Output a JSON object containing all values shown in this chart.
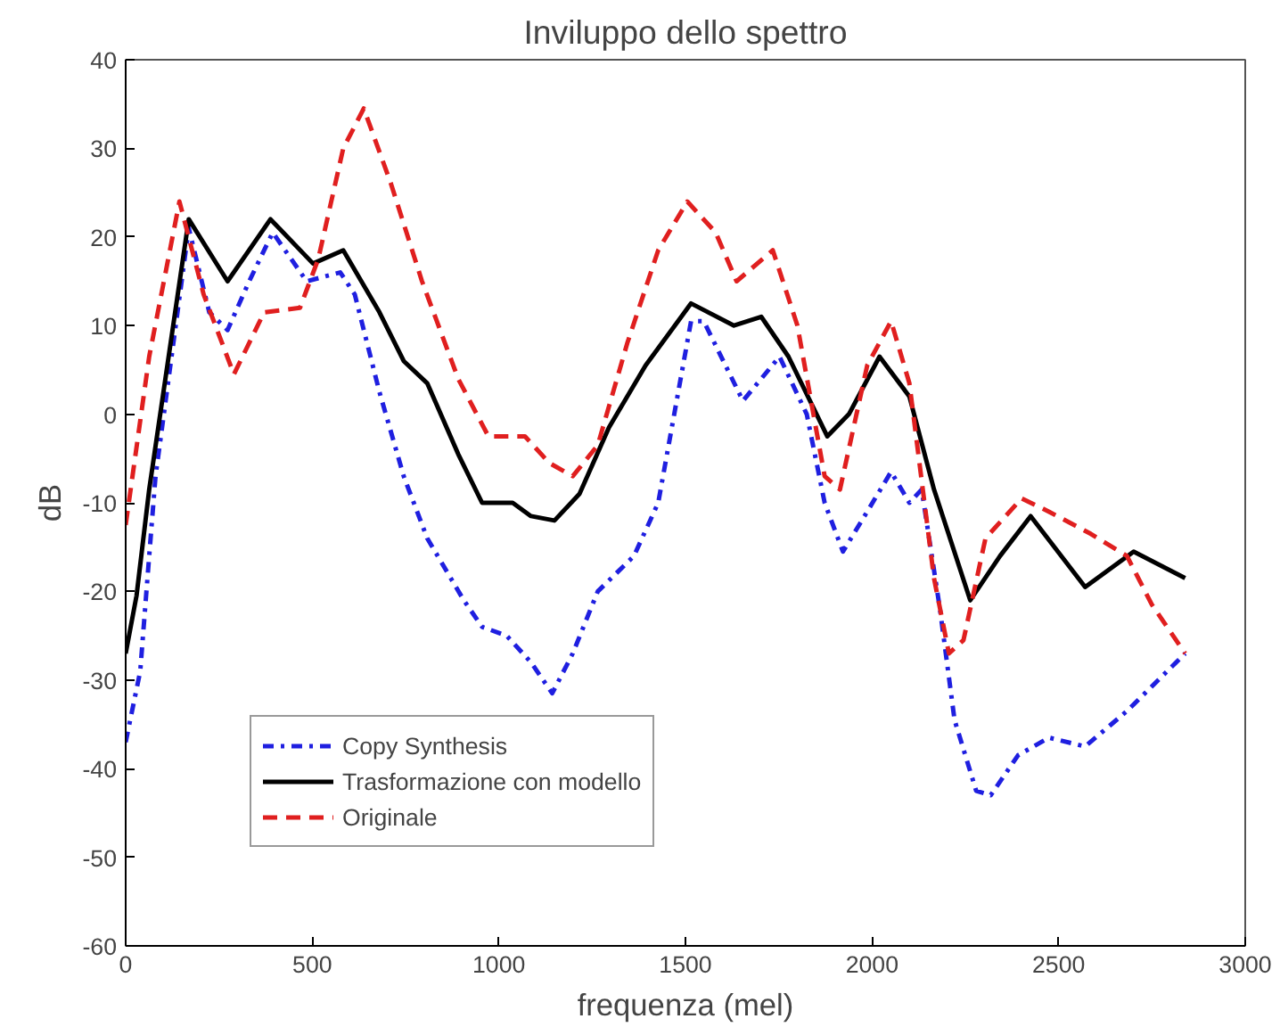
{
  "chart_data": {
    "type": "line",
    "title": "Inviluppo dello spettro",
    "xlabel": "frequenza (mel)",
    "ylabel": "dB",
    "xlim": [
      0,
      3000
    ],
    "ylim": [
      -60,
      40
    ],
    "xticks": [
      0,
      500,
      1000,
      1500,
      2000,
      2500,
      3000
    ],
    "yticks": [
      -60,
      -50,
      -40,
      -30,
      -20,
      -10,
      0,
      10,
      20,
      30,
      40
    ],
    "grid": false,
    "legend": "bottom left",
    "marker": "none",
    "series": [
      {
        "name": "Copy Synthesis",
        "color": "#1f1fe0",
        "line_style": "dashdot",
        "x": [
          0,
          39,
          63,
          80,
          169,
          224,
          273,
          331,
          394,
          485,
          575,
          614,
          680,
          745,
          808,
          906,
          955,
          1021,
          1086,
          1143,
          1198,
          1265,
          1362,
          1427,
          1515,
          1549,
          1654,
          1752,
          1825,
          1873,
          1922,
          1987,
          2051,
          2100,
          2133,
          2182,
          2221,
          2279,
          2318,
          2391,
          2474,
          2571,
          2683,
          2839
        ],
        "values": [
          -37,
          -29,
          -16,
          -7,
          21,
          11.5,
          9.5,
          15,
          20.5,
          15,
          16,
          13.5,
          2.5,
          -7,
          -14,
          -21,
          -24,
          -25,
          -28,
          -31.5,
          -27,
          -20,
          -16,
          -10,
          10.5,
          10.5,
          1.5,
          6.5,
          0,
          -10,
          -15.5,
          -11,
          -6.5,
          -10,
          -8.5,
          -22,
          -34.5,
          -42.5,
          -43,
          -38.5,
          -36.5,
          -37.5,
          -33.5,
          -27
        ]
      },
      {
        "name": "Trasformazione con modello",
        "color": "#000000",
        "line_style": "solid",
        "x": [
          0,
          29,
          63,
          169,
          273,
          388,
          502,
          583,
          680,
          745,
          808,
          891,
          955,
          1037,
          1086,
          1149,
          1216,
          1295,
          1393,
          1515,
          1630,
          1703,
          1776,
          1880,
          1938,
          2020,
          2100,
          2166,
          2263,
          2343,
          2425,
          2571,
          2701,
          2839
        ],
        "values": [
          -27,
          -20.5,
          -8.5,
          22,
          15,
          22,
          17,
          18.5,
          11.5,
          6,
          3.5,
          -4.5,
          -10,
          -10,
          -11.5,
          -12,
          -9,
          -1.5,
          5.5,
          12.5,
          10,
          11,
          6.5,
          -2.5,
          0,
          6.5,
          2,
          -8.5,
          -21,
          -16,
          -11.5,
          -19.5,
          -15.5,
          -18.5
        ]
      },
      {
        "name": "Originale",
        "color": "#e01f1f",
        "line_style": "dashed",
        "x": [
          0,
          63,
          144,
          209,
          290,
          371,
          467,
          516,
          583,
          638,
          711,
          794,
          891,
          972,
          1070,
          1135,
          1198,
          1265,
          1344,
          1427,
          1505,
          1581,
          1637,
          1734,
          1800,
          1873,
          1914,
          1987,
          2051,
          2100,
          2166,
          2206,
          2245,
          2304,
          2401,
          2474,
          2586,
          2683,
          2750,
          2839
        ],
        "values": [
          -12.5,
          6.5,
          24,
          13.5,
          4.5,
          11.5,
          12,
          17.5,
          30,
          34.5,
          26,
          15,
          4,
          -2.5,
          -2.5,
          -5.5,
          -7,
          -3.5,
          8,
          18.5,
          24,
          20.5,
          15,
          18.5,
          10,
          -7,
          -8.5,
          5.5,
          10.5,
          3.5,
          -18.5,
          -27,
          -25.5,
          -14,
          -9.5,
          -11,
          -13.5,
          -16,
          -21.5,
          -27
        ]
      }
    ]
  }
}
